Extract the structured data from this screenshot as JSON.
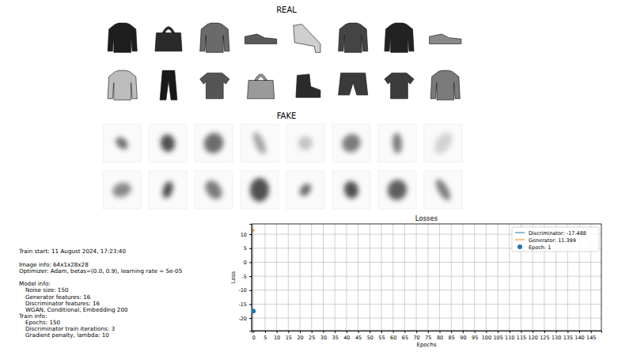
{
  "real_title": "REAL",
  "fake_title": "FAKE",
  "info": {
    "train_start": "Train start: 11 August 2024, 17:23:40",
    "image_info": "Image info: 64x1x28x28",
    "optimizer": "Optimizer: Adam, betas=(0.0, 0.9), learning rate = 5e-05",
    "sections": [
      {
        "heading": "Model info:",
        "items": [
          "Noise size: 150",
          "Generator features: 16",
          "Discriminator features: 16",
          "WGAN, Conditional, Embedding 200"
        ]
      },
      {
        "heading": "Train info:",
        "items": [
          "Epochs: 150",
          "Discriminator train iterations: 3",
          "Gradient penalty, lambda: 10"
        ]
      }
    ]
  },
  "chart_data": {
    "type": "line",
    "title": "Losses",
    "x_label": "Epochs",
    "y_label": "Loss",
    "x": [
      0
    ],
    "series": [
      {
        "name": "Discriminator: -17.488",
        "color": "#1f77b4",
        "type": "line",
        "values": [
          -17.488
        ]
      },
      {
        "name": "Generator: 11.399",
        "color": "#ff7f0e",
        "type": "line",
        "values": [
          11.399
        ]
      },
      {
        "name": "Epoch: 1",
        "color": "#1f77b4",
        "type": "scatter",
        "marker": "circle",
        "values": [
          -17.488
        ]
      }
    ],
    "xlim": [
      -0.75,
      149.5
    ],
    "ylim": [
      -24.5,
      13.7
    ],
    "xticks": [
      0,
      5,
      10,
      15,
      20,
      25,
      30,
      35,
      40,
      45,
      50,
      55,
      60,
      65,
      70,
      75,
      80,
      85,
      90,
      95,
      100,
      105,
      110,
      115,
      120,
      125,
      130,
      135,
      140,
      145
    ],
    "yticks": [
      -20,
      -15,
      -10,
      -5,
      0,
      5,
      10
    ],
    "grid": true,
    "legend": "upper right"
  }
}
